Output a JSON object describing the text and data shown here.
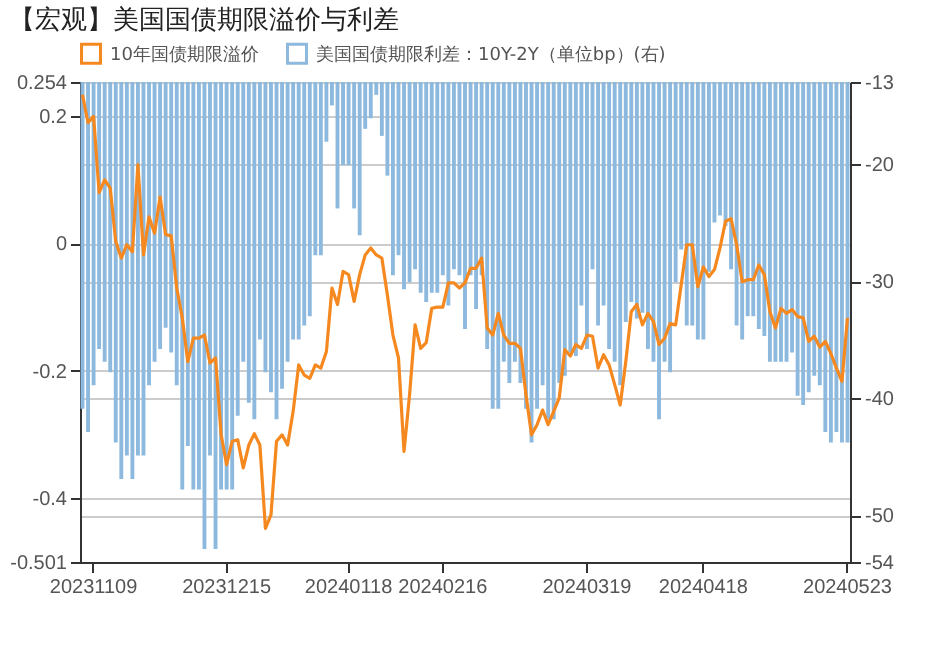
{
  "chart_data": {
    "type": "line",
    "title": "【宏观】美国国债期限溢价与利差",
    "categories": [
      null,
      null,
      "20231109",
      null,
      null,
      null,
      null,
      null,
      null,
      null,
      null,
      null,
      null,
      null,
      null,
      null,
      null,
      null,
      null,
      null,
      null,
      null,
      null,
      null,
      null,
      null,
      "20231215",
      null,
      null,
      null,
      null,
      null,
      null,
      null,
      null,
      null,
      null,
      null,
      null,
      null,
      null,
      null,
      null,
      null,
      null,
      null,
      null,
      null,
      "20240118",
      null,
      null,
      null,
      null,
      null,
      null,
      null,
      null,
      null,
      null,
      null,
      null,
      null,
      null,
      null,
      null,
      "20240216",
      null,
      null,
      null,
      null,
      null,
      null,
      null,
      null,
      null,
      null,
      null,
      null,
      null,
      null,
      null,
      null,
      null,
      null,
      null,
      null,
      null,
      null,
      null,
      null,
      null,
      "20240319",
      null,
      null,
      null,
      null,
      null,
      null,
      null,
      null,
      null,
      null,
      null,
      null,
      null,
      null,
      null,
      null,
      null,
      null,
      null,
      null,
      "20240418",
      null,
      null,
      null,
      null,
      null,
      null,
      null,
      null,
      null,
      null,
      null,
      null,
      null,
      null,
      null,
      null,
      null,
      null,
      null,
      null,
      null,
      null,
      null,
      null,
      null,
      "20240523"
    ],
    "series": [
      {
        "name": "10年国债期限溢价",
        "color": "#f5891f",
        "values": [
          0.234,
          0.19,
          0.2,
          0.08,
          0.1,
          0.087,
          0.003,
          -0.023,
          -0.002,
          -0.013,
          0.124,
          -0.018,
          0.042,
          0.016,
          0.073,
          0.014,
          0.012,
          -0.07,
          -0.117,
          -0.186,
          -0.149,
          -0.149,
          -0.144,
          -0.188,
          -0.18,
          -0.3,
          -0.348,
          -0.311,
          -0.309,
          -0.353,
          -0.317,
          -0.299,
          -0.317,
          -0.448,
          -0.427,
          -0.311,
          -0.301,
          -0.317,
          -0.264,
          -0.191,
          -0.207,
          -0.212,
          -0.191,
          -0.196,
          -0.17,
          -0.07,
          -0.096,
          -0.044,
          -0.049,
          -0.091,
          -0.049,
          -0.018,
          -0.007,
          -0.018,
          -0.023,
          -0.081,
          -0.144,
          -0.18,
          -0.327,
          -0.238,
          -0.128,
          -0.165,
          -0.156,
          -0.102,
          -0.1,
          -0.1,
          -0.062,
          -0.062,
          -0.07,
          -0.062,
          -0.039,
          -0.039,
          -0.023,
          -0.133,
          -0.144,
          -0.11,
          -0.144,
          -0.157,
          -0.157,
          -0.165,
          -0.238,
          -0.301,
          -0.285,
          -0.262,
          -0.285,
          -0.264,
          -0.243,
          -0.167,
          -0.177,
          -0.159,
          -0.165,
          -0.144,
          -0.146,
          -0.196,
          -0.175,
          -0.191,
          -0.222,
          -0.254,
          -0.186,
          -0.107,
          -0.096,
          -0.128,
          -0.11,
          -0.123,
          -0.159,
          -0.149,
          -0.126,
          -0.128,
          -0.065,
          -0.002,
          -0.002,
          -0.068,
          -0.037,
          -0.052,
          -0.041,
          -0.007,
          0.035,
          0.039,
          -0.002,
          -0.06,
          -0.057,
          -0.057,
          -0.034,
          -0.049,
          -0.107,
          -0.133,
          -0.102,
          -0.11,
          -0.104,
          -0.115,
          -0.117,
          -0.154,
          -0.146,
          -0.163,
          -0.154,
          -0.173,
          -0.196,
          -0.217,
          -0.117
        ]
      },
      {
        "name": "美国国债期限利差：10Y-2Y（单位bp）(右)",
        "type": "bar",
        "axis": "y2",
        "color": "#8cb9dd",
        "values": [
          -40.9,
          -42.9,
          -38.9,
          -35.8,
          -36.9,
          -37.8,
          -43.8,
          -46.9,
          -44.9,
          -46.9,
          -44.9,
          -44.9,
          -38.9,
          -36.9,
          -35.8,
          -34,
          -36.1,
          -38.9,
          -47.8,
          -44.1,
          -47.8,
          -47.8,
          -52.9,
          -44.9,
          -52.9,
          -47.8,
          -47.8,
          -47.8,
          -41.5,
          -36.9,
          -40.4,
          -41.8,
          -35,
          -37.8,
          -39.5,
          -41.8,
          -39.2,
          -36.9,
          -35,
          -35,
          -33.8,
          -33,
          -27.8,
          -27.8,
          -18.1,
          -15,
          -23.8,
          -20.1,
          -20.1,
          -23.8,
          -26.1,
          -17,
          -16.1,
          -14.1,
          -17.6,
          -21,
          -29.5,
          -27.8,
          -30.7,
          -30.1,
          -29,
          -31,
          -31.8,
          -31,
          -31,
          -29.5,
          -32.1,
          -29,
          -29.5,
          -34.1,
          -29.5,
          -32.4,
          -29.5,
          -35.8,
          -40.9,
          -40.9,
          -36.9,
          -38.7,
          -36.9,
          -38.7,
          -40.9,
          -43.8,
          -40.9,
          -38.9,
          -41.8,
          -41.8,
          -38.7,
          -38.1,
          -36.1,
          -36.4,
          -32.1,
          -35.8,
          -29,
          -33.8,
          -32.1,
          -35.8,
          -36.9,
          -38.9,
          -33.5,
          -31.8,
          -33.2,
          -32.7,
          -35.8,
          -36.9,
          -41.8,
          -36.9,
          -37.8,
          -30.1,
          -27.3,
          -33.8,
          -33.8,
          -35,
          -35,
          -29.2,
          -25,
          -24.4,
          -25.3,
          -29,
          -33.8,
          -35,
          -33,
          -33,
          -34.1,
          -34.7,
          -36.9,
          -36.9,
          -36.9,
          -36.9,
          -36.1,
          -39.8,
          -40.6,
          -39.5,
          -38.1,
          -38.9,
          -42.9,
          -43.8,
          -42.9,
          -43.8,
          -43.8
        ]
      }
    ],
    "ylim": [
      -0.501,
      0.254
    ],
    "yticks": [
      -0.501,
      -0.4,
      -0.2,
      0,
      0.2,
      0.254
    ],
    "y2lim": [
      -54,
      -13
    ],
    "y2ticks": [
      -54,
      -50,
      -40,
      -30,
      -20,
      -13
    ],
    "grid": "y",
    "legend": "top"
  }
}
